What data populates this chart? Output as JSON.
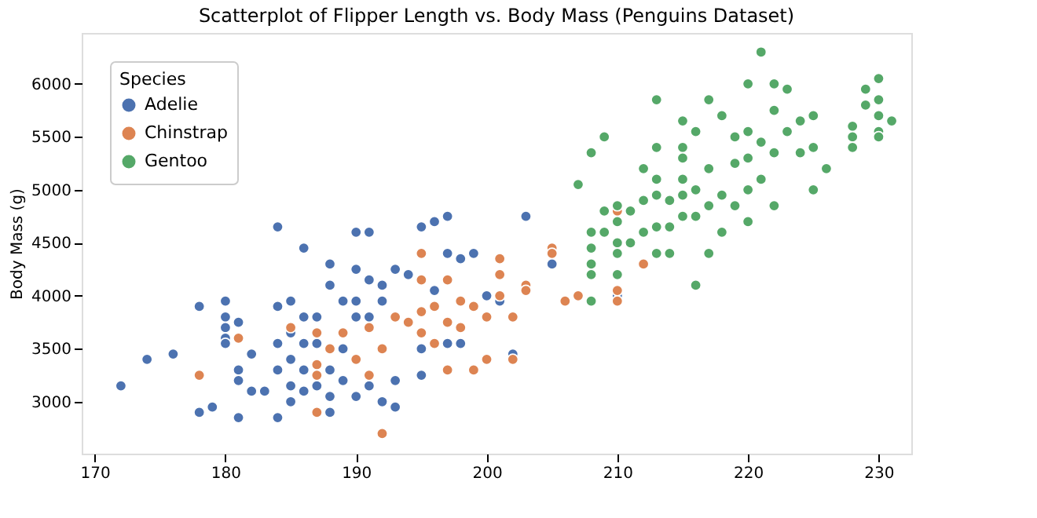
{
  "chart_data": {
    "type": "scatter",
    "title": "Scatterplot of Flipper Length vs. Body Mass (Penguins Dataset)",
    "ylabel": "Body Mass (g)",
    "legend_title": "Species",
    "legend": "top left",
    "grid": false,
    "marker": "circle",
    "xlim": [
      169,
      232.5
    ],
    "xticks": [
      170,
      180,
      190,
      200,
      210,
      220,
      230
    ],
    "ylim": [
      2510,
      6480
    ],
    "yticks": [
      3000,
      3500,
      4000,
      4500,
      5000,
      5500,
      6000
    ],
    "series": [
      {
        "name": "Adelie",
        "color": "#4c72b0",
        "x": [
          172,
          174,
          176,
          178,
          178,
          179,
          180,
          180,
          180,
          180,
          180,
          181,
          181,
          181,
          181,
          182,
          182,
          183,
          184,
          184,
          184,
          184,
          184,
          185,
          185,
          185,
          185,
          185,
          186,
          186,
          186,
          186,
          186,
          187,
          187,
          187,
          188,
          188,
          188,
          188,
          188,
          189,
          189,
          189,
          190,
          190,
          190,
          190,
          190,
          191,
          191,
          191,
          191,
          192,
          192,
          192,
          193,
          193,
          193,
          194,
          195,
          196,
          197,
          197,
          198,
          199,
          200,
          201,
          202,
          203,
          205,
          210,
          195,
          196,
          197,
          198,
          195
        ],
        "values": [
          3150,
          3400,
          3450,
          3900,
          2900,
          2950,
          3950,
          3800,
          3700,
          3600,
          3550,
          3750,
          3300,
          3200,
          2850,
          3450,
          3100,
          3100,
          4650,
          3900,
          3550,
          3300,
          2850,
          3950,
          3650,
          3400,
          3150,
          3000,
          4450,
          3800,
          3550,
          3300,
          3100,
          3800,
          3550,
          3150,
          4300,
          4100,
          3300,
          3050,
          2900,
          3950,
          3500,
          3200,
          4600,
          4250,
          3950,
          3800,
          3050,
          4600,
          4150,
          3800,
          3150,
          4100,
          3950,
          3000,
          4250,
          2950,
          3200,
          4200,
          4650,
          4700,
          4750,
          4400,
          4350,
          4400,
          4000,
          3950,
          3450,
          4750,
          4300,
          4000,
          3250,
          4050,
          3550,
          3550,
          3500
        ]
      },
      {
        "name": "Chinstrap",
        "color": "#dd8452",
        "x": [
          178,
          181,
          185,
          187,
          187,
          187,
          187,
          188,
          189,
          190,
          191,
          191,
          192,
          192,
          193,
          194,
          195,
          195,
          195,
          195,
          196,
          196,
          197,
          197,
          197,
          198,
          198,
          199,
          199,
          200,
          200,
          201,
          201,
          201,
          202,
          202,
          203,
          203,
          205,
          205,
          206,
          207,
          210,
          210,
          210,
          212
        ],
        "values": [
          3250,
          3600,
          3700,
          3650,
          3350,
          3250,
          2900,
          3500,
          3650,
          3400,
          3700,
          3250,
          2700,
          3500,
          3800,
          3750,
          4400,
          4150,
          3850,
          3650,
          3900,
          3550,
          4150,
          3750,
          3300,
          3950,
          3700,
          3900,
          3300,
          3800,
          3400,
          4350,
          4200,
          4000,
          3800,
          3400,
          4100,
          4050,
          4450,
          4400,
          3950,
          4000,
          4800,
          4050,
          3950,
          4300
        ]
      },
      {
        "name": "Gentoo",
        "color": "#55a868",
        "x": [
          208,
          208,
          208,
          208,
          208,
          208,
          207,
          209,
          209,
          209,
          210,
          210,
          210,
          210,
          210,
          211,
          211,
          212,
          212,
          212,
          213,
          213,
          213,
          213,
          213,
          213,
          214,
          214,
          214,
          215,
          215,
          215,
          215,
          215,
          215,
          216,
          216,
          216,
          216,
          217,
          217,
          217,
          217,
          218,
          218,
          218,
          219,
          219,
          219,
          220,
          220,
          220,
          220,
          220,
          221,
          221,
          221,
          222,
          222,
          222,
          222,
          223,
          223,
          224,
          224,
          225,
          225,
          225,
          226,
          228,
          228,
          228,
          229,
          229,
          230,
          230,
          230,
          230,
          230,
          231
        ],
        "values": [
          3950,
          4200,
          4300,
          4450,
          4600,
          5350,
          5050,
          5500,
          4800,
          4600,
          4850,
          4700,
          4500,
          4400,
          4200,
          4800,
          4500,
          5200,
          4900,
          4600,
          5850,
          5400,
          5100,
          4950,
          4650,
          4400,
          4900,
          4650,
          4400,
          5650,
          5400,
          5300,
          5100,
          4950,
          4750,
          5550,
          5000,
          4750,
          4100,
          5850,
          5200,
          4850,
          4400,
          5700,
          4950,
          4600,
          5500,
          5250,
          4850,
          6000,
          5550,
          5300,
          5000,
          4700,
          6300,
          5450,
          5100,
          6000,
          5750,
          5350,
          4850,
          5950,
          5550,
          5650,
          5350,
          5700,
          5400,
          5000,
          5200,
          5600,
          5500,
          5400,
          5950,
          5800,
          6050,
          5850,
          5700,
          5550,
          5500,
          5650
        ]
      }
    ]
  }
}
